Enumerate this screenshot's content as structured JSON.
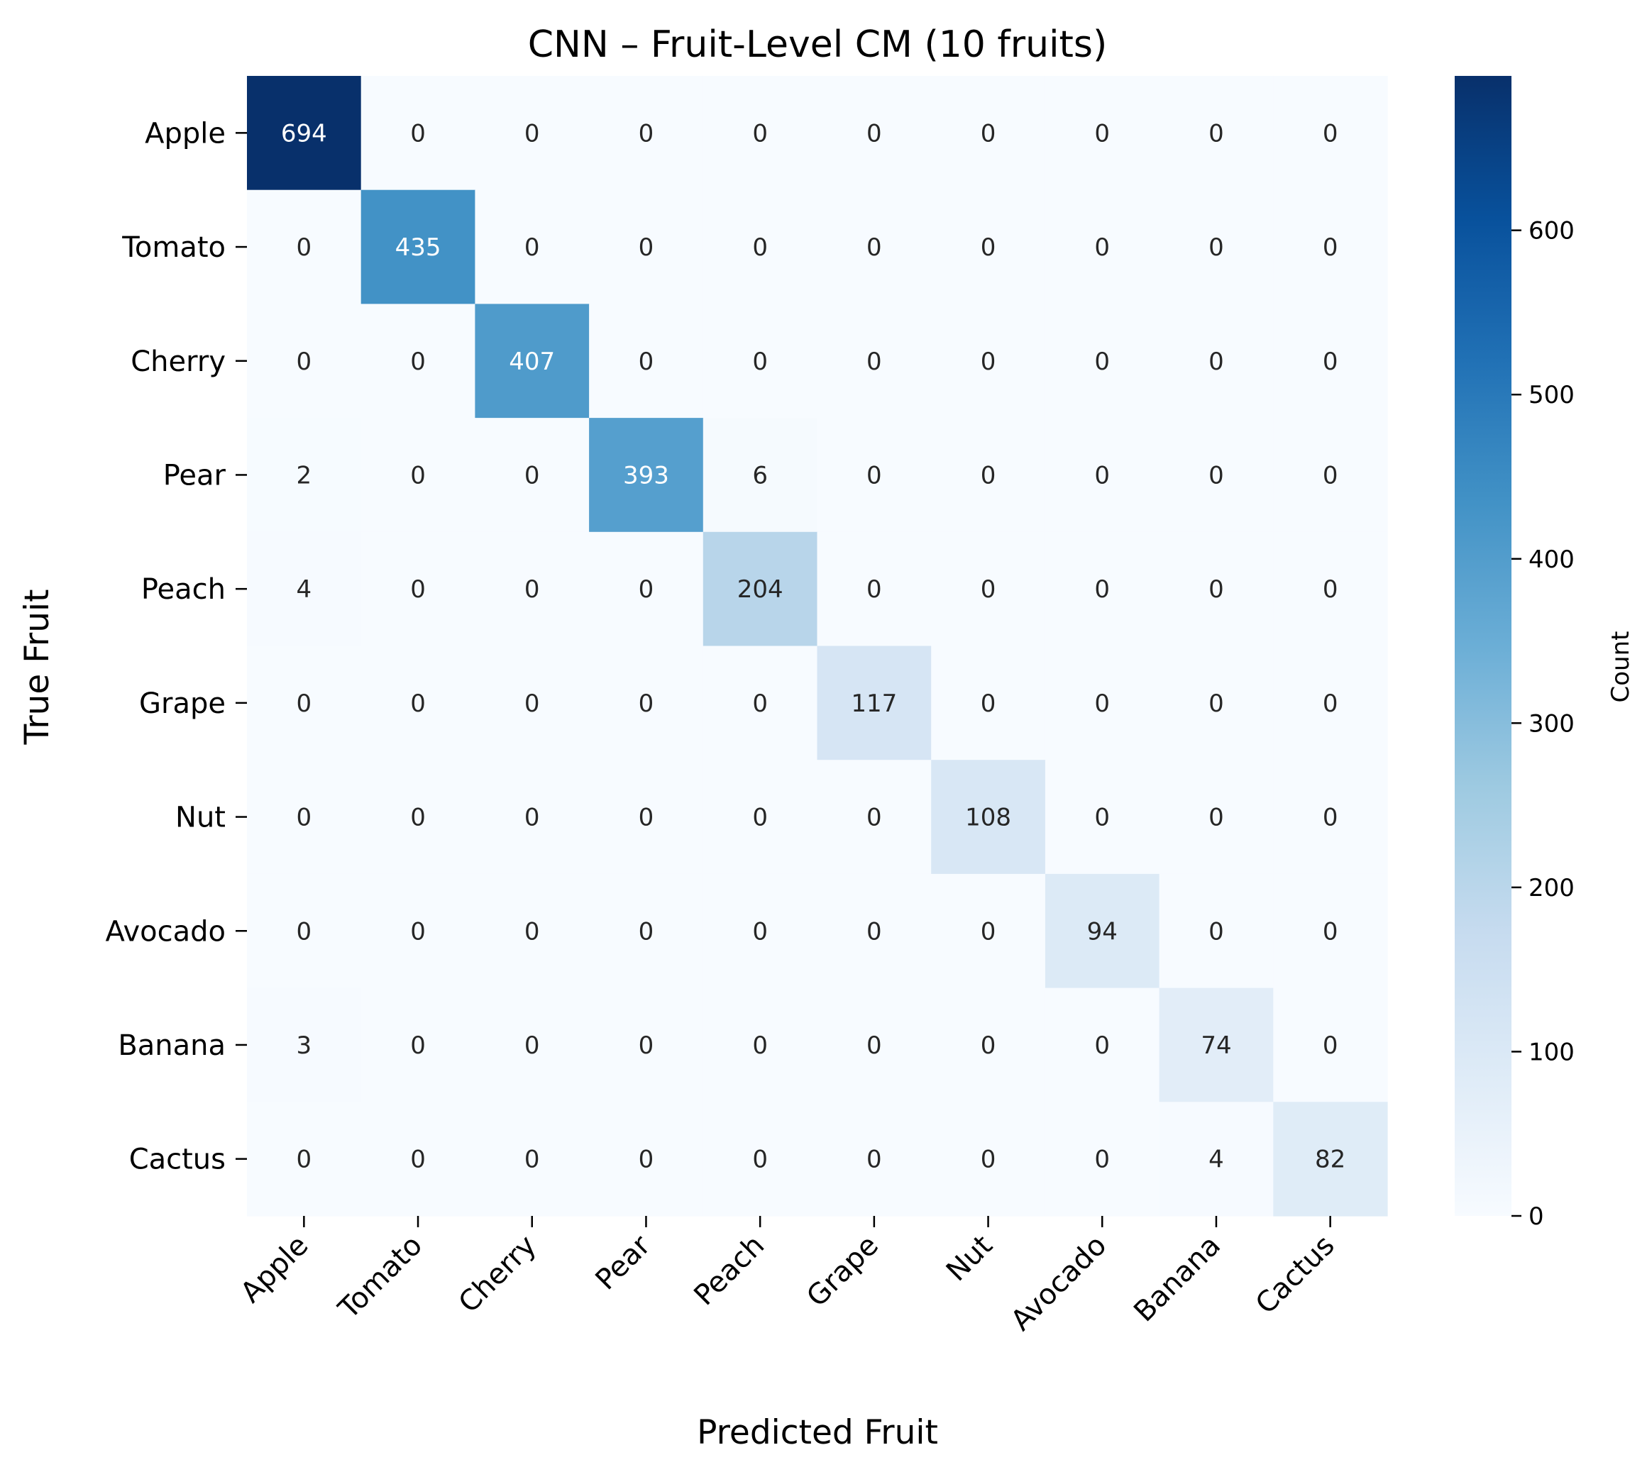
{
  "chart_data": {
    "type": "heatmap",
    "title": "CNN – Fruit-Level CM (10 fruits)",
    "xlabel": "Predicted Fruit",
    "ylabel": "True Fruit",
    "x_categories": [
      "Apple",
      "Tomato",
      "Cherry",
      "Pear",
      "Peach",
      "Grape",
      "Nut",
      "Avocado",
      "Banana",
      "Cactus"
    ],
    "y_categories": [
      "Apple",
      "Tomato",
      "Cherry",
      "Pear",
      "Peach",
      "Grape",
      "Nut",
      "Avocado",
      "Banana",
      "Cactus"
    ],
    "values": [
      [
        694,
        0,
        0,
        0,
        0,
        0,
        0,
        0,
        0,
        0
      ],
      [
        0,
        435,
        0,
        0,
        0,
        0,
        0,
        0,
        0,
        0
      ],
      [
        0,
        0,
        407,
        0,
        0,
        0,
        0,
        0,
        0,
        0
      ],
      [
        2,
        0,
        0,
        393,
        6,
        0,
        0,
        0,
        0,
        0
      ],
      [
        4,
        0,
        0,
        0,
        204,
        0,
        0,
        0,
        0,
        0
      ],
      [
        0,
        0,
        0,
        0,
        0,
        117,
        0,
        0,
        0,
        0
      ],
      [
        0,
        0,
        0,
        0,
        0,
        0,
        108,
        0,
        0,
        0
      ],
      [
        0,
        0,
        0,
        0,
        0,
        0,
        0,
        94,
        0,
        0
      ],
      [
        3,
        0,
        0,
        0,
        0,
        0,
        0,
        0,
        74,
        0
      ],
      [
        0,
        0,
        0,
        0,
        0,
        0,
        0,
        0,
        4,
        82
      ]
    ],
    "colorbar": {
      "label": "Count",
      "min": 0,
      "max": 694,
      "ticks": [
        0,
        100,
        200,
        300,
        400,
        500,
        600
      ],
      "colormap": "Blues"
    },
    "grid": false,
    "legend": "none"
  }
}
